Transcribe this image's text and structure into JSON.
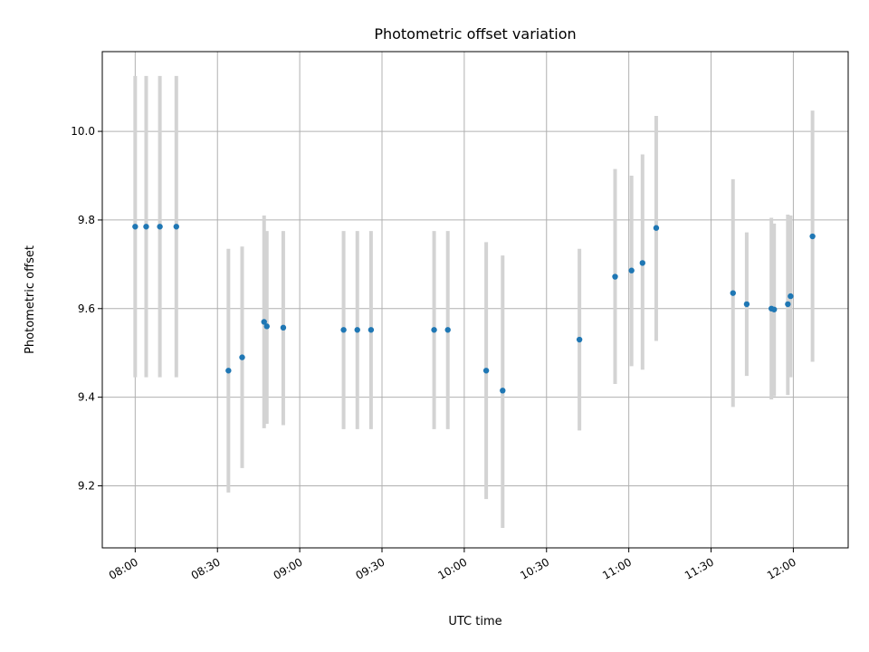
{
  "chart_data": {
    "type": "scatter",
    "title": "Photometric offset variation",
    "xlabel": "UTC time",
    "ylabel": "Photometric offset",
    "x_ticks": [
      "08:00",
      "08:30",
      "09:00",
      "09:30",
      "10:00",
      "10:30",
      "11:00",
      "11:30",
      "12:00"
    ],
    "y_ticks": [
      "9.2",
      "9.4",
      "9.6",
      "9.8",
      "10.0"
    ],
    "xlim": [
      "07:48",
      "12:20"
    ],
    "ylim": [
      9.06,
      10.18
    ],
    "grid": true,
    "marker_color": "#1f77b4",
    "errorbar_color": "#d3d3d3",
    "points": [
      {
        "time": "08:00",
        "value": 9.785,
        "low": 9.445,
        "high": 10.125
      },
      {
        "time": "08:04",
        "value": 9.785,
        "low": 9.445,
        "high": 10.125
      },
      {
        "time": "08:09",
        "value": 9.785,
        "low": 9.445,
        "high": 10.125
      },
      {
        "time": "08:15",
        "value": 9.785,
        "low": 9.445,
        "high": 10.125
      },
      {
        "time": "08:34",
        "value": 9.46,
        "low": 9.185,
        "high": 9.735
      },
      {
        "time": "08:39",
        "value": 9.49,
        "low": 9.24,
        "high": 9.74
      },
      {
        "time": "08:47",
        "value": 9.57,
        "low": 9.33,
        "high": 9.81
      },
      {
        "time": "08:48",
        "value": 9.56,
        "low": 9.34,
        "high": 9.775
      },
      {
        "time": "08:54",
        "value": 9.557,
        "low": 9.337,
        "high": 9.775
      },
      {
        "time": "09:16",
        "value": 9.552,
        "low": 9.328,
        "high": 9.775
      },
      {
        "time": "09:21",
        "value": 9.552,
        "low": 9.328,
        "high": 9.775
      },
      {
        "time": "09:26",
        "value": 9.552,
        "low": 9.328,
        "high": 9.775
      },
      {
        "time": "09:49",
        "value": 9.552,
        "low": 9.328,
        "high": 9.775
      },
      {
        "time": "09:54",
        "value": 9.552,
        "low": 9.328,
        "high": 9.775
      },
      {
        "time": "10:08",
        "value": 9.46,
        "low": 9.17,
        "high": 9.75
      },
      {
        "time": "10:14",
        "value": 9.415,
        "low": 9.105,
        "high": 9.72
      },
      {
        "time": "10:42",
        "value": 9.53,
        "low": 9.325,
        "high": 9.735
      },
      {
        "time": "10:55",
        "value": 9.672,
        "low": 9.43,
        "high": 9.915
      },
      {
        "time": "11:01",
        "value": 9.686,
        "low": 9.47,
        "high": 9.9
      },
      {
        "time": "11:05",
        "value": 9.703,
        "low": 9.462,
        "high": 9.948
      },
      {
        "time": "11:10",
        "value": 9.782,
        "low": 9.527,
        "high": 10.035
      },
      {
        "time": "11:38",
        "value": 9.635,
        "low": 9.378,
        "high": 9.892
      },
      {
        "time": "11:43",
        "value": 9.61,
        "low": 9.448,
        "high": 9.772
      },
      {
        "time": "11:52",
        "value": 9.6,
        "low": 9.395,
        "high": 9.805
      },
      {
        "time": "11:53",
        "value": 9.598,
        "low": 9.402,
        "high": 9.792
      },
      {
        "time": "11:58",
        "value": 9.61,
        "low": 9.405,
        "high": 9.812
      },
      {
        "time": "11:59",
        "value": 9.628,
        "low": 9.445,
        "high": 9.81
      },
      {
        "time": "12:07",
        "value": 9.763,
        "low": 9.48,
        "high": 10.047
      }
    ]
  }
}
